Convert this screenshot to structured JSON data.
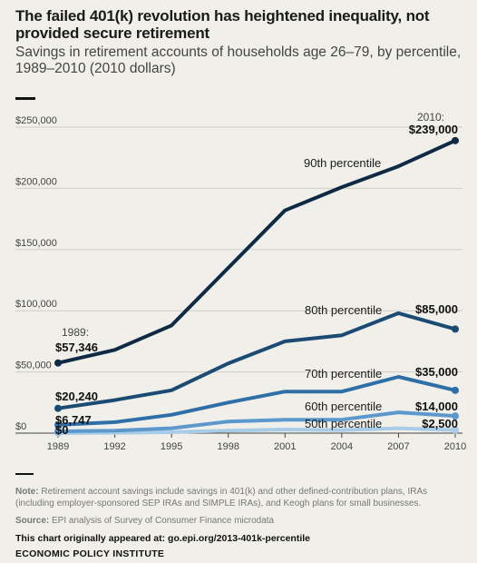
{
  "chart_data": {
    "type": "line",
    "title": "The failed 401(k) revolution has heightened inequality, not provided secure retirement",
    "subtitle": "Savings in retirement accounts of households age 26–79, by percentile, 1989–2010 (2010 dollars)",
    "x": [
      1989,
      1992,
      1995,
      1998,
      2001,
      2004,
      2007,
      2010
    ],
    "x_tick_labels": [
      "1989",
      "1992",
      "1995",
      "1998",
      "2001",
      "2004",
      "2007",
      "2010"
    ],
    "ylim": [
      0,
      250000
    ],
    "y_ticks": [
      0,
      50000,
      100000,
      150000,
      200000,
      250000
    ],
    "y_tick_labels": [
      "$0",
      "$50,000",
      "$100,000",
      "$150,000",
      "$200,000",
      "$250,000"
    ],
    "grid": true,
    "series": [
      {
        "name": "90th percentile",
        "color": "#0f2a44",
        "values": [
          57346,
          68000,
          88000,
          135000,
          182000,
          201000,
          218000,
          239000
        ],
        "start_label": "$57,346",
        "end_label": "$239,000"
      },
      {
        "name": "80th percentile",
        "color": "#1b4b73",
        "values": [
          20240,
          27000,
          35000,
          57000,
          75000,
          80000,
          98000,
          85000
        ],
        "start_label": "$20,240",
        "end_label": "$85,000"
      },
      {
        "name": "70th percentile",
        "color": "#2e6fa7",
        "values": [
          6747,
          9000,
          15000,
          25000,
          34000,
          34000,
          46000,
          35000
        ],
        "start_label": "$6,747",
        "end_label": "$35,000"
      },
      {
        "name": "60th percentile",
        "color": "#5b98cc",
        "values": [
          1500,
          2000,
          4000,
          9500,
          11000,
          11000,
          17000,
          14000
        ],
        "start_label": "",
        "end_label": "$14,000"
      },
      {
        "name": "50th percentile",
        "color": "#a8cbe8",
        "values": [
          0,
          300,
          800,
          2000,
          3000,
          2500,
          4000,
          2500
        ],
        "start_label": "$0",
        "end_label": "$2,500"
      }
    ],
    "annotations": {
      "start_year": "1989:",
      "end_year": "2010:"
    }
  },
  "footer": {
    "note_label": "Note:",
    "note_text": "Retirement account savings include savings in 401(k) and other defined-contribution plans, IRAs (including employer-sponsored SEP IRAs and SIMPLE IRAs), and Keogh plans for small businesses.",
    "source_label": "Source:",
    "source_text": "EPI analysis of Survey of Consumer Finance microdata",
    "appeared": "This chart originally appeared at: go.epi.org/2013-401k-percentile",
    "org": "ECONOMIC POLICY INSTITUTE"
  }
}
